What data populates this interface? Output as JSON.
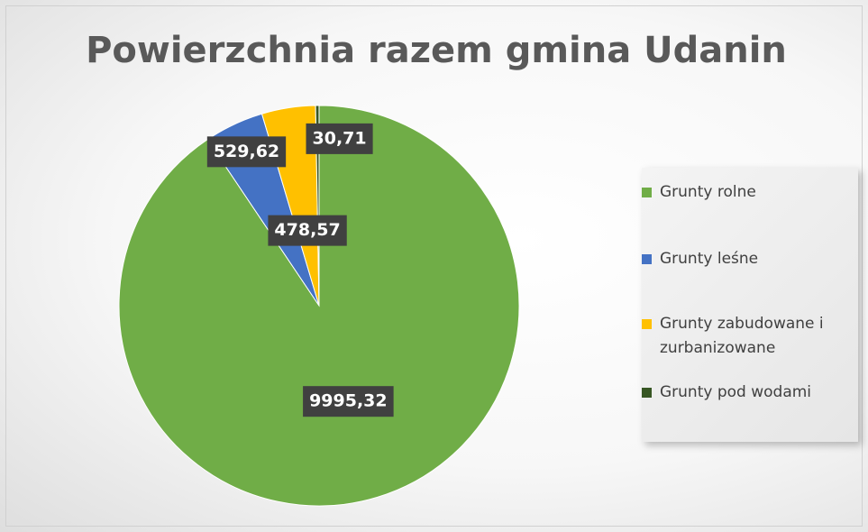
{
  "chart_data": {
    "type": "pie",
    "title": "Powierzchnia razem  gmina Udanin",
    "categories": [
      "Grunty rolne",
      "Grunty leśne",
      "Grunty zabudowane i zurbanizowane",
      "Grunty pod wodami"
    ],
    "values": [
      9995.32,
      529.62,
      478.57,
      30.71
    ],
    "value_labels": [
      "9995,32",
      "529,62",
      "478,57",
      "30,71"
    ],
    "colors": [
      "#70ad47",
      "#4472c4",
      "#ffc000",
      "#375623"
    ]
  }
}
